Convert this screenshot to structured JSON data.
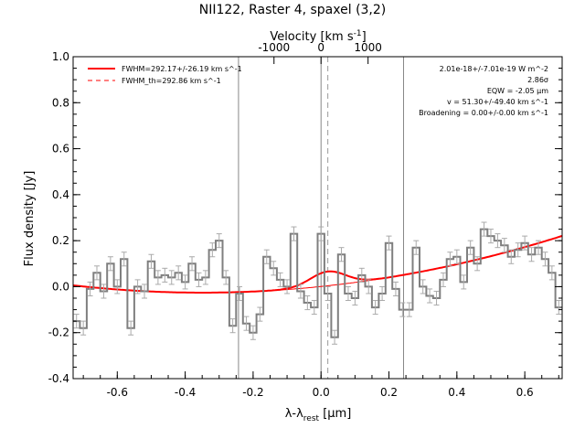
{
  "chart_data": {
    "type": "line",
    "title": "NII122, Raster 4, spaxel (3,2)",
    "xlabel": "λ-λ",
    "xlabel_sub": "rest",
    "xlabel_unit": " [μm]",
    "ylabel": "Flux density [Jy]",
    "top_axis_label": "Velocity [km s",
    "top_axis_label_sup": "-1",
    "top_axis_label_end": "]",
    "xlim": [
      -0.73,
      0.71
    ],
    "ylim": [
      -0.4,
      1.0
    ],
    "x_ticks": [
      -0.6,
      -0.4,
      -0.2,
      0.0,
      0.2,
      0.4,
      0.6
    ],
    "x_tick_labels": [
      "-0.6",
      "-0.4",
      "-0.2",
      "0.0",
      "0.2",
      "0.4",
      "0.6"
    ],
    "y_ticks": [
      -0.4,
      -0.2,
      0.0,
      0.2,
      0.4,
      0.6,
      0.8,
      1.0
    ],
    "y_tick_labels": [
      "-0.4",
      "-0.2",
      "0.0",
      "0.2",
      "0.4",
      "0.6",
      "0.8",
      "1.0"
    ],
    "top_ticks_kms": [
      -1000,
      0,
      1000
    ],
    "top_tick_labels": [
      "-1000",
      "0",
      "1000"
    ],
    "top_tick_x_positions": [
      -0.1385,
      0.0,
      0.1385
    ],
    "annotations": [
      "2.01e-18+/-7.01e-19 W m^-2",
      "2.86σ",
      "EQW = -2.05 μm",
      "v = 51.30+/-49.40 km s^-1",
      "Broadening = 0.00+/-0.00 km s^-1"
    ],
    "legend": [
      {
        "label": "FWHM=292.17+/-26.19 km s^-1",
        "color": "#ff0000",
        "style": "solid"
      },
      {
        "label": "FWHM_th=292.86 km s^-1",
        "color": "#ff0000",
        "style": "dashed"
      }
    ],
    "vertical_lines": [
      -0.243,
      0.0,
      0.243
    ],
    "center_dashed": 0.02,
    "colors": {
      "data": "#7f7f7f",
      "fit": "#ff0000",
      "axes": "#000000"
    },
    "series": [
      {
        "name": "spectrum",
        "x": [
          -0.72,
          -0.7,
          -0.68,
          -0.66,
          -0.64,
          -0.62,
          -0.6,
          -0.58,
          -0.56,
          -0.54,
          -0.52,
          -0.5,
          -0.48,
          -0.46,
          -0.44,
          -0.42,
          -0.4,
          -0.38,
          -0.36,
          -0.34,
          -0.32,
          -0.3,
          -0.28,
          -0.26,
          -0.24,
          -0.22,
          -0.2,
          -0.18,
          -0.16,
          -0.14,
          -0.12,
          -0.1,
          -0.08,
          -0.06,
          -0.04,
          -0.02,
          0.0,
          0.02,
          0.04,
          0.06,
          0.08,
          0.1,
          0.12,
          0.14,
          0.16,
          0.18,
          0.2,
          0.22,
          0.24,
          0.26,
          0.28,
          0.3,
          0.32,
          0.34,
          0.36,
          0.38,
          0.4,
          0.42,
          0.44,
          0.46,
          0.48,
          0.5,
          0.52,
          0.54,
          0.56,
          0.58,
          0.6,
          0.62,
          0.64,
          0.66,
          0.68,
          0.7
        ],
        "y": [
          -0.15,
          -0.18,
          -0.01,
          0.06,
          -0.02,
          0.1,
          0.0,
          0.12,
          -0.18,
          0.0,
          -0.02,
          0.11,
          0.04,
          0.05,
          0.04,
          0.06,
          0.02,
          0.1,
          0.03,
          0.04,
          0.16,
          0.2,
          0.04,
          -0.17,
          -0.03,
          -0.16,
          -0.2,
          -0.12,
          0.13,
          0.08,
          0.03,
          0.0,
          0.23,
          -0.02,
          -0.07,
          -0.09,
          0.23,
          -0.03,
          -0.22,
          0.14,
          -0.03,
          -0.05,
          0.05,
          0.0,
          -0.09,
          -0.03,
          0.19,
          -0.01,
          -0.1,
          -0.1,
          0.17,
          0.0,
          -0.04,
          -0.05,
          0.03,
          0.12,
          0.13,
          0.02,
          0.17,
          0.1,
          0.25,
          0.22,
          0.2,
          0.18,
          0.13,
          0.16,
          0.19,
          0.14,
          0.17,
          0.12,
          0.06,
          -0.09
        ],
        "yerr": 0.03
      },
      {
        "name": "fit",
        "note": "polynomial baseline plus gaussian line"
      }
    ]
  }
}
